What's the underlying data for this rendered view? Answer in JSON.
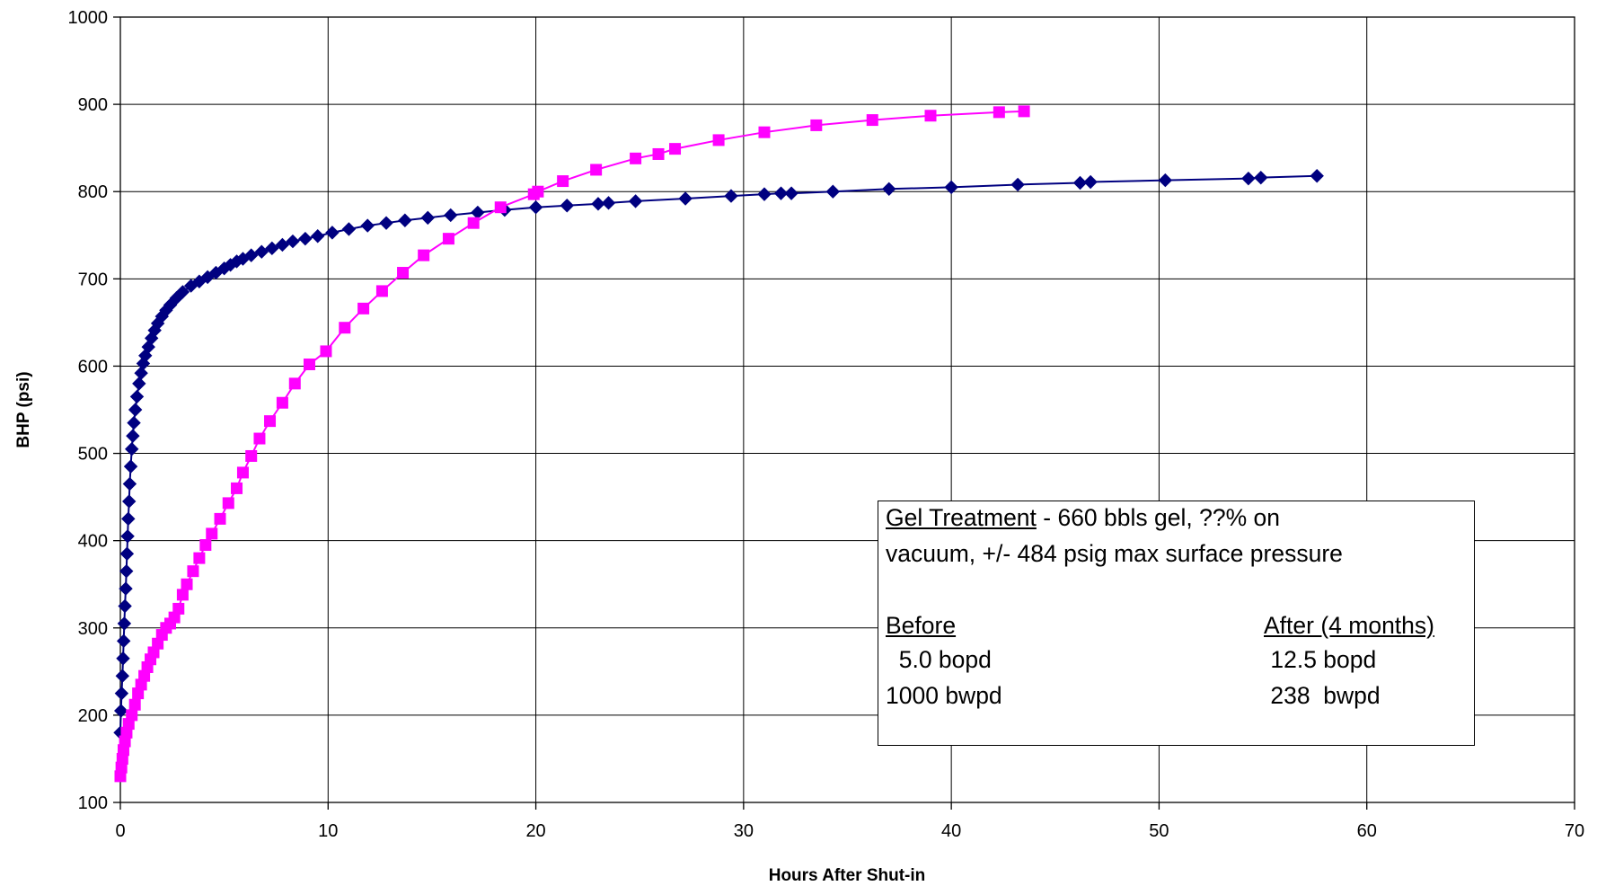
{
  "chart_data": {
    "type": "scatter",
    "title": "",
    "xlabel": "Hours After Shut-in",
    "ylabel": "BHP (psi)",
    "xlim": [
      0,
      70
    ],
    "ylim": [
      100,
      1000
    ],
    "xticks": [
      0,
      10,
      20,
      30,
      40,
      50,
      60,
      70
    ],
    "yticks": [
      100,
      200,
      300,
      400,
      500,
      600,
      700,
      800,
      900,
      1000
    ],
    "grid": true,
    "legend": "none",
    "series": [
      {
        "color": "#000080",
        "marker": "diamond",
        "line": true,
        "points": [
          [
            0.0,
            180
          ],
          [
            0.03,
            205
          ],
          [
            0.06,
            225
          ],
          [
            0.1,
            245
          ],
          [
            0.13,
            265
          ],
          [
            0.16,
            285
          ],
          [
            0.19,
            305
          ],
          [
            0.22,
            325
          ],
          [
            0.26,
            345
          ],
          [
            0.29,
            365
          ],
          [
            0.32,
            385
          ],
          [
            0.35,
            405
          ],
          [
            0.38,
            425
          ],
          [
            0.42,
            445
          ],
          [
            0.45,
            465
          ],
          [
            0.5,
            485
          ],
          [
            0.55,
            505
          ],
          [
            0.6,
            520
          ],
          [
            0.65,
            535
          ],
          [
            0.72,
            550
          ],
          [
            0.8,
            565
          ],
          [
            0.9,
            580
          ],
          [
            1.0,
            592
          ],
          [
            1.1,
            603
          ],
          [
            1.2,
            612
          ],
          [
            1.35,
            622
          ],
          [
            1.5,
            632
          ],
          [
            1.65,
            641
          ],
          [
            1.8,
            649
          ],
          [
            2.0,
            657
          ],
          [
            2.2,
            664
          ],
          [
            2.4,
            670
          ],
          [
            2.7,
            678
          ],
          [
            3.0,
            685
          ],
          [
            3.4,
            692
          ],
          [
            3.8,
            697
          ],
          [
            4.2,
            702
          ],
          [
            4.6,
            707
          ],
          [
            5.0,
            712
          ],
          [
            5.3,
            716
          ],
          [
            5.6,
            720
          ],
          [
            5.9,
            723
          ],
          [
            6.3,
            727
          ],
          [
            6.8,
            731
          ],
          [
            7.3,
            735
          ],
          [
            7.8,
            739
          ],
          [
            8.3,
            743
          ],
          [
            8.9,
            746
          ],
          [
            9.5,
            749
          ],
          [
            10.2,
            753
          ],
          [
            11.0,
            757
          ],
          [
            11.9,
            761
          ],
          [
            12.8,
            764
          ],
          [
            13.7,
            767
          ],
          [
            14.8,
            770
          ],
          [
            15.9,
            773
          ],
          [
            17.2,
            776
          ],
          [
            18.5,
            779
          ],
          [
            20.0,
            782
          ],
          [
            21.5,
            784
          ],
          [
            23.0,
            786
          ],
          [
            23.5,
            787
          ],
          [
            24.8,
            789
          ],
          [
            27.2,
            792
          ],
          [
            29.4,
            795
          ],
          [
            31.0,
            797
          ],
          [
            31.8,
            798
          ],
          [
            32.3,
            798
          ],
          [
            34.3,
            800
          ],
          [
            37.0,
            803
          ],
          [
            40.0,
            805
          ],
          [
            43.2,
            808
          ],
          [
            46.2,
            810
          ],
          [
            46.7,
            811
          ],
          [
            50.3,
            813
          ],
          [
            54.3,
            815
          ],
          [
            54.9,
            816
          ],
          [
            57.6,
            818
          ]
        ]
      },
      {
        "color": "#FF00FF",
        "marker": "square",
        "line": true,
        "points": [
          [
            0.0,
            130
          ],
          [
            0.05,
            140
          ],
          [
            0.1,
            150
          ],
          [
            0.15,
            160
          ],
          [
            0.22,
            170
          ],
          [
            0.3,
            180
          ],
          [
            0.4,
            190
          ],
          [
            0.55,
            200
          ],
          [
            0.7,
            212
          ],
          [
            0.85,
            225
          ],
          [
            1.0,
            235
          ],
          [
            1.15,
            245
          ],
          [
            1.3,
            255
          ],
          [
            1.45,
            264
          ],
          [
            1.6,
            272
          ],
          [
            1.8,
            282
          ],
          [
            2.0,
            292
          ],
          [
            2.2,
            300
          ],
          [
            2.4,
            305
          ],
          [
            2.6,
            312
          ],
          [
            2.8,
            322
          ],
          [
            3.0,
            338
          ],
          [
            3.2,
            350
          ],
          [
            3.5,
            365
          ],
          [
            3.8,
            380
          ],
          [
            4.1,
            395
          ],
          [
            4.4,
            408
          ],
          [
            4.8,
            425
          ],
          [
            5.2,
            443
          ],
          [
            5.6,
            460
          ],
          [
            5.9,
            478
          ],
          [
            6.3,
            497
          ],
          [
            6.7,
            517
          ],
          [
            7.2,
            537
          ],
          [
            7.8,
            558
          ],
          [
            8.4,
            580
          ],
          [
            9.1,
            602
          ],
          [
            9.9,
            617
          ],
          [
            10.8,
            644
          ],
          [
            11.7,
            666
          ],
          [
            12.6,
            686
          ],
          [
            13.6,
            707
          ],
          [
            14.6,
            727
          ],
          [
            15.8,
            746
          ],
          [
            17.0,
            764
          ],
          [
            18.3,
            782
          ],
          [
            19.9,
            797
          ],
          [
            20.1,
            800
          ],
          [
            21.3,
            812
          ],
          [
            22.9,
            825
          ],
          [
            24.8,
            838
          ],
          [
            25.9,
            843
          ],
          [
            26.7,
            849
          ],
          [
            28.8,
            859
          ],
          [
            31.0,
            868
          ],
          [
            33.5,
            876
          ],
          [
            36.2,
            882
          ],
          [
            39.0,
            887
          ],
          [
            42.3,
            891
          ],
          [
            43.5,
            892
          ]
        ]
      }
    ],
    "annotation": {
      "title_underlined": "Gel Treatment",
      "title_rest": " - 660 bbls gel, ??% on",
      "line2": "vacuum, +/- 484 psig max surface pressure",
      "before_header": "Before",
      "after_header": "After (4 months)",
      "before_line1": "  5.0 bopd",
      "before_line2": "1000 bwpd",
      "after_line1": " 12.5 bopd",
      "after_line2": " 238  bwpd"
    }
  }
}
